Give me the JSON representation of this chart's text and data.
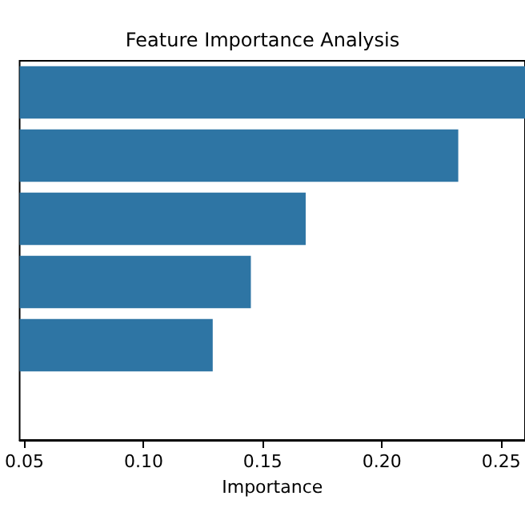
{
  "chart_data": {
    "type": "bar",
    "orientation": "horizontal",
    "title": "Feature Importance Analysis",
    "xlabel": "Importance",
    "categories": [
      null,
      null,
      null,
      null,
      null
    ],
    "values": [
      0.26,
      0.232,
      0.168,
      0.145,
      0.129
    ],
    "color": "#2e75a4",
    "xlim": [
      0.048,
      0.26
    ],
    "xticks": [
      {
        "value": 0.05,
        "label": "0.05"
      },
      {
        "value": 0.1,
        "label": "0.10"
      },
      {
        "value": 0.15,
        "label": "0.15"
      },
      {
        "value": 0.2,
        "label": "0.20"
      },
      {
        "value": 0.25,
        "label": "0.25"
      }
    ],
    "tick_labels": "x",
    "grid": false
  }
}
